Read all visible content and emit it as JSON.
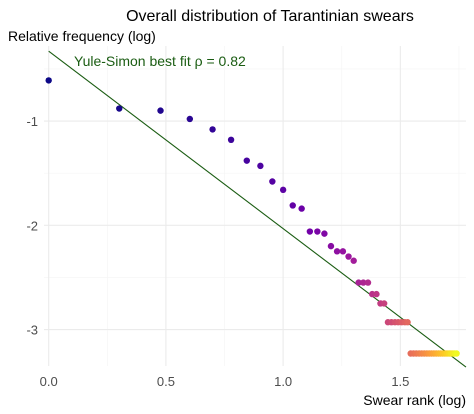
{
  "chart_data": {
    "type": "scatter",
    "title": "Overall distribution of Tarantinian swears",
    "xlabel": "Swear rank (log)",
    "ylabel": "Relative frequency (log)",
    "xlim": [
      -0.02,
      1.78
    ],
    "ylim": [
      -3.35,
      -0.28
    ],
    "x_ticks": [
      0.0,
      0.5,
      1.0,
      1.5
    ],
    "x_tick_labels": [
      "0.0",
      "0.5",
      "1.0",
      "1.5"
    ],
    "y_ticks": [
      -1,
      -2,
      -3
    ],
    "y_tick_labels": [
      "-1",
      "-2",
      "-3"
    ],
    "grid": true,
    "point_color_scale": "plasma (dark blue-purple to yellow, by rank)",
    "points": {
      "x": [
        0.0,
        0.301,
        0.477,
        0.602,
        0.699,
        0.778,
        0.845,
        0.903,
        0.954,
        1.0,
        1.041,
        1.079,
        1.114,
        1.146,
        1.176,
        1.204,
        1.23,
        1.255,
        1.279,
        1.301,
        1.322,
        1.342,
        1.362,
        1.38,
        1.398,
        1.415,
        1.431,
        1.447,
        1.462,
        1.477,
        1.491,
        1.505,
        1.519,
        1.531,
        1.544,
        1.556,
        1.568,
        1.58,
        1.591,
        1.602,
        1.613,
        1.623,
        1.633,
        1.643,
        1.653,
        1.663,
        1.672,
        1.681,
        1.69,
        1.699,
        1.708,
        1.716,
        1.724,
        1.732,
        1.74
      ],
      "y": [
        -0.61,
        -0.88,
        -0.9,
        -0.98,
        -1.08,
        -1.18,
        -1.38,
        -1.43,
        -1.58,
        -1.66,
        -1.81,
        -1.84,
        -2.06,
        -2.06,
        -2.08,
        -2.2,
        -2.25,
        -2.25,
        -2.3,
        -2.34,
        -2.55,
        -2.55,
        -2.55,
        -2.66,
        -2.66,
        -2.75,
        -2.75,
        -2.93,
        -2.93,
        -2.93,
        -2.93,
        -2.93,
        -2.93,
        -2.93,
        -3.23,
        -3.23,
        -3.23,
        -3.23,
        -3.23,
        -3.23,
        -3.23,
        -3.23,
        -3.23,
        -3.23,
        -3.23,
        -3.23,
        -3.23,
        -3.23,
        -3.23,
        -3.23,
        -3.23,
        -3.23,
        -3.23,
        -3.23,
        -3.23
      ]
    },
    "fit_line": {
      "label": "Yule-Simon best fit ρ = 0.82",
      "color": "#1a5c12",
      "x": [
        0.0,
        1.78
      ],
      "y": [
        -0.33,
        -3.36
      ]
    },
    "colors": {
      "plasma": [
        "#0d0887",
        "#46039f",
        "#7201a8",
        "#9c179e",
        "#bd3786",
        "#d8576b",
        "#ed7953",
        "#fb9f3a",
        "#fdca26",
        "#f0f921"
      ],
      "grid": "#ebebeb",
      "tick_text": "#4d4d4d"
    }
  }
}
